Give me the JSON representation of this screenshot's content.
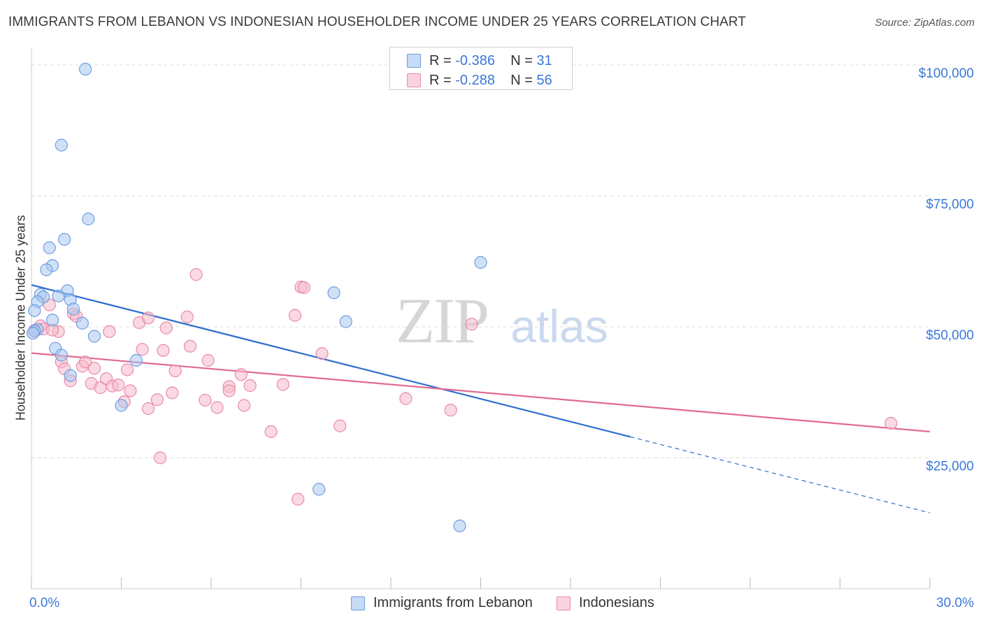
{
  "header": {
    "title": "IMMIGRANTS FROM LEBANON VS INDONESIAN HOUSEHOLDER INCOME UNDER 25 YEARS CORRELATION CHART",
    "source": "Source: ZipAtlas.com"
  },
  "watermark": {
    "zip": "ZIP",
    "atlas": "atlas"
  },
  "legend_top": {
    "rows": [
      {
        "r_label": "R = ",
        "r_value": "-0.386",
        "n_label": "N = ",
        "n_value": "31"
      },
      {
        "r_label": "R = ",
        "r_value": "-0.288",
        "n_label": "N = ",
        "n_value": "56"
      }
    ]
  },
  "colors": {
    "blue_fill": "#a9c8f0",
    "blue_stroke": "#6d9de0",
    "blue_line": "#2f6fd0",
    "pink_fill": "#f6b9cb",
    "pink_stroke": "#e88aa8",
    "pink_line": "#e26a93",
    "tick_text": "#3c78d8",
    "grid": "#dddddd"
  },
  "chart_data": {
    "type": "scatter",
    "title": "IMMIGRANTS FROM LEBANON VS INDONESIAN HOUSEHOLDER INCOME UNDER 25 YEARS CORRELATION CHART",
    "xlabel": "",
    "ylabel": "Householder Income Under 25 years",
    "xlim": [
      0,
      30
    ],
    "ylim": [
      0,
      102000
    ],
    "x_tick_labels": [
      "0.0%",
      "30.0%"
    ],
    "y_ticks": [
      25000,
      50000,
      75000,
      100000
    ],
    "y_tick_labels": [
      "$25,000",
      "$50,000",
      "$75,000",
      "$100,000"
    ],
    "grid": true,
    "legend_position": "bottom",
    "series": [
      {
        "name": "Immigrants from Lebanon",
        "color": "#a9c8f0",
        "r": -0.386,
        "n": 31,
        "trend": {
          "x0": 0,
          "y0": 58000,
          "x1": 20,
          "y1": 29000,
          "dashed_to_x": 30,
          "dashed_to_y": 14500
        },
        "points": [
          [
            1.8,
            99200
          ],
          [
            1.0,
            84700
          ],
          [
            1.9,
            70600
          ],
          [
            1.1,
            66700
          ],
          [
            0.6,
            65100
          ],
          [
            0.7,
            61700
          ],
          [
            0.5,
            60900
          ],
          [
            0.3,
            56200
          ],
          [
            0.4,
            55700
          ],
          [
            0.2,
            54800
          ],
          [
            1.2,
            56900
          ],
          [
            0.9,
            55900
          ],
          [
            1.3,
            55200
          ],
          [
            1.4,
            53400
          ],
          [
            0.1,
            53100
          ],
          [
            0.7,
            51300
          ],
          [
            1.7,
            50700
          ],
          [
            10.1,
            56500
          ],
          [
            10.5,
            51000
          ],
          [
            15.0,
            62300
          ],
          [
            0.2,
            49500
          ],
          [
            0.1,
            49200
          ],
          [
            2.1,
            48200
          ],
          [
            0.8,
            45900
          ],
          [
            1.0,
            44600
          ],
          [
            3.5,
            43600
          ],
          [
            1.3,
            40700
          ],
          [
            3.0,
            35000
          ],
          [
            9.6,
            19000
          ],
          [
            14.3,
            12000
          ],
          [
            0.05,
            48800
          ]
        ]
      },
      {
        "name": "Indonesians",
        "color": "#f6b9cb",
        "r": -0.288,
        "n": 56,
        "trend": {
          "x0": 0,
          "y0": 45000,
          "x1": 30,
          "y1": 30000
        },
        "points": [
          [
            0.3,
            50200
          ],
          [
            0.6,
            54200
          ],
          [
            0.9,
            49100
          ],
          [
            0.4,
            49600
          ],
          [
            1.4,
            52500
          ],
          [
            1.5,
            52000
          ],
          [
            1.0,
            43300
          ],
          [
            1.1,
            42000
          ],
          [
            1.3,
            39700
          ],
          [
            1.7,
            42500
          ],
          [
            1.8,
            43300
          ],
          [
            2.0,
            39200
          ],
          [
            2.1,
            42100
          ],
          [
            2.3,
            38400
          ],
          [
            2.5,
            40100
          ],
          [
            2.6,
            49100
          ],
          [
            2.7,
            38700
          ],
          [
            2.9,
            38900
          ],
          [
            3.1,
            35700
          ],
          [
            3.2,
            41800
          ],
          [
            3.3,
            37800
          ],
          [
            3.6,
            50800
          ],
          [
            3.7,
            45700
          ],
          [
            3.9,
            51700
          ],
          [
            3.9,
            34400
          ],
          [
            4.2,
            36100
          ],
          [
            4.4,
            45500
          ],
          [
            4.5,
            49800
          ],
          [
            4.7,
            37400
          ],
          [
            4.8,
            41600
          ],
          [
            4.3,
            25000
          ],
          [
            5.2,
            51900
          ],
          [
            5.3,
            46300
          ],
          [
            5.5,
            60000
          ],
          [
            5.8,
            36000
          ],
          [
            5.9,
            43600
          ],
          [
            6.2,
            34600
          ],
          [
            6.6,
            38600
          ],
          [
            6.6,
            37800
          ],
          [
            7.0,
            40900
          ],
          [
            7.1,
            35000
          ],
          [
            7.3,
            38800
          ],
          [
            8.0,
            30000
          ],
          [
            8.4,
            39000
          ],
          [
            8.8,
            52200
          ],
          [
            8.9,
            17100
          ],
          [
            9.0,
            57600
          ],
          [
            9.1,
            57500
          ],
          [
            9.7,
            44900
          ],
          [
            10.3,
            31100
          ],
          [
            12.5,
            36300
          ],
          [
            14.0,
            34100
          ],
          [
            14.7,
            50500
          ],
          [
            28.7,
            31600
          ],
          [
            0.1,
            49300
          ],
          [
            0.7,
            49400
          ]
        ]
      }
    ]
  }
}
